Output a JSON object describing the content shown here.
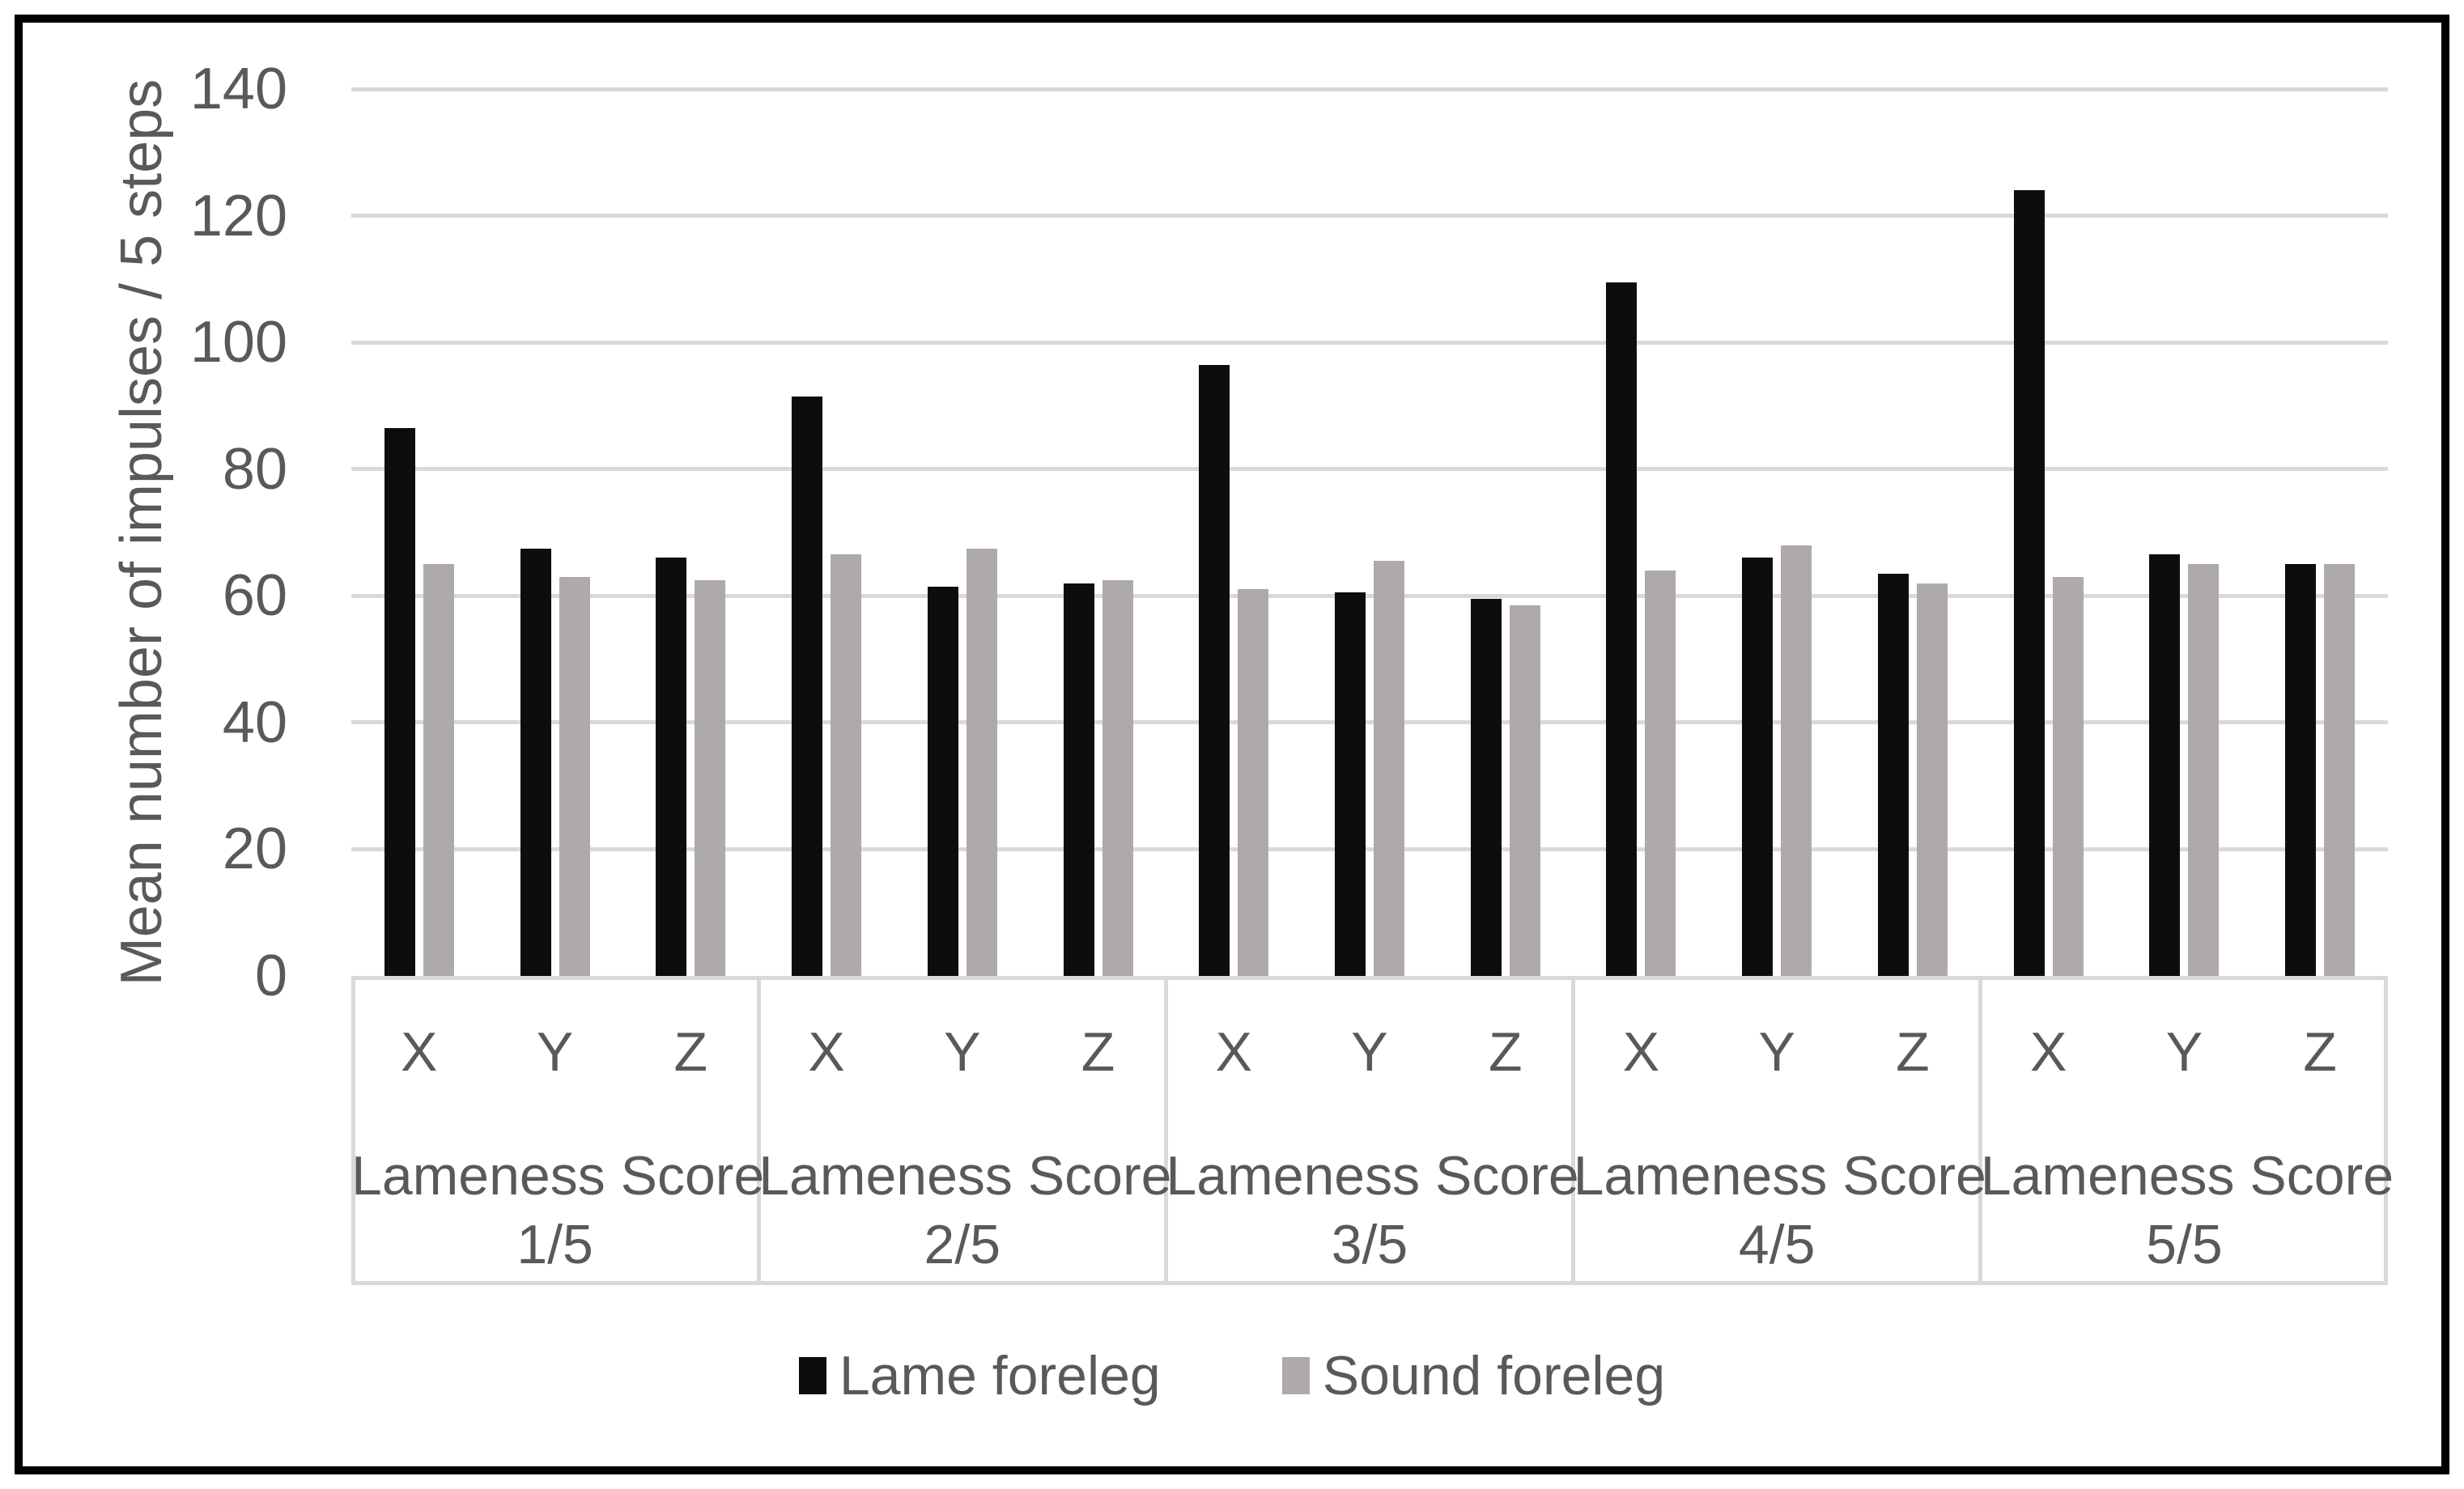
{
  "chart_data": {
    "type": "bar",
    "title": "",
    "ylabel": "Mean number of impulses / 5 steps",
    "xlabel": "",
    "ylim": [
      0,
      140
    ],
    "yticks": [
      0,
      20,
      40,
      60,
      80,
      100,
      120,
      140
    ],
    "grid": true,
    "legend_position": "bottom-center",
    "subcategories": [
      "X",
      "Y",
      "Z"
    ],
    "groups": [
      {
        "label_line1": "Lameness Score",
        "label_line2": "1/5"
      },
      {
        "label_line1": "Lameness Score",
        "label_line2": "2/5"
      },
      {
        "label_line1": "Lameness Score",
        "label_line2": "3/5"
      },
      {
        "label_line1": "Lameness Score",
        "label_line2": "4/5"
      },
      {
        "label_line1": "Lameness Score",
        "label_line2": "5/5"
      }
    ],
    "series": [
      {
        "name": "Lame foreleg",
        "color": "#0d0d0d",
        "values": [
          [
            86.5,
            67.5,
            66
          ],
          [
            91.5,
            61.5,
            62
          ],
          [
            96.5,
            60.5,
            59.5
          ],
          [
            109.5,
            66,
            63.5
          ],
          [
            124,
            66.5,
            65
          ]
        ]
      },
      {
        "name": "Sound foreleg",
        "color": "#aeaaaa",
        "values": [
          [
            65,
            63,
            62.5
          ],
          [
            66.5,
            67.5,
            62.5
          ],
          [
            61,
            65.5,
            58.5
          ],
          [
            64,
            68,
            62
          ],
          [
            63,
            65,
            65
          ]
        ]
      }
    ]
  },
  "colors": {
    "background": "#ffffff",
    "figure_border": "#000000",
    "gridline": "#d9d9d9",
    "axis_text": "#595959"
  }
}
